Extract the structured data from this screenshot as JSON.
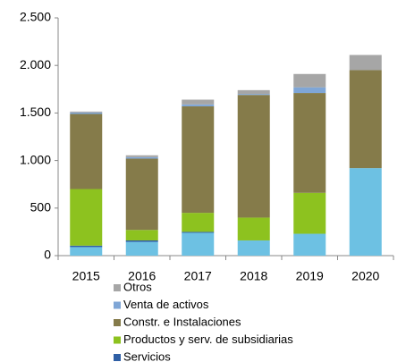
{
  "chart_data": {
    "type": "bar",
    "stacked": true,
    "categories": [
      "2015",
      "2016",
      "2017",
      "2018",
      "2019",
      "2020"
    ],
    "series": [
      {
        "name": null,
        "color": "#6dc1e3",
        "values": [
          90,
          145,
          240,
          160,
          230,
          920
        ]
      },
      {
        "name": "Servicios",
        "color": "#2f5fa5",
        "values": [
          15,
          15,
          10,
          0,
          0,
          0
        ]
      },
      {
        "name": "Productos y serv. de subsidiarias",
        "color": "#8dc21f",
        "values": [
          595,
          110,
          200,
          240,
          430,
          0
        ]
      },
      {
        "name": "Constr. e Instalaciones",
        "color": "#857b4a",
        "values": [
          790,
          750,
          1120,
          1290,
          1050,
          1030
        ]
      },
      {
        "name": "Venta de activos",
        "color": "#7fa6d6",
        "values": [
          15,
          15,
          20,
          10,
          60,
          0
        ]
      },
      {
        "name": "Otros",
        "color": "#a6a6a6",
        "values": [
          10,
          20,
          50,
          40,
          140,
          160
        ]
      }
    ],
    "ylim": [
      0,
      2500
    ],
    "yticks": [
      0,
      500,
      {
        "value": 1000,
        "label": "1.000"
      },
      {
        "value": 1500,
        "label": "1.500"
      },
      {
        "value": 2000,
        "label": "2.000"
      },
      {
        "value": 2500,
        "label": "2.500"
      }
    ],
    "grid": false
  }
}
